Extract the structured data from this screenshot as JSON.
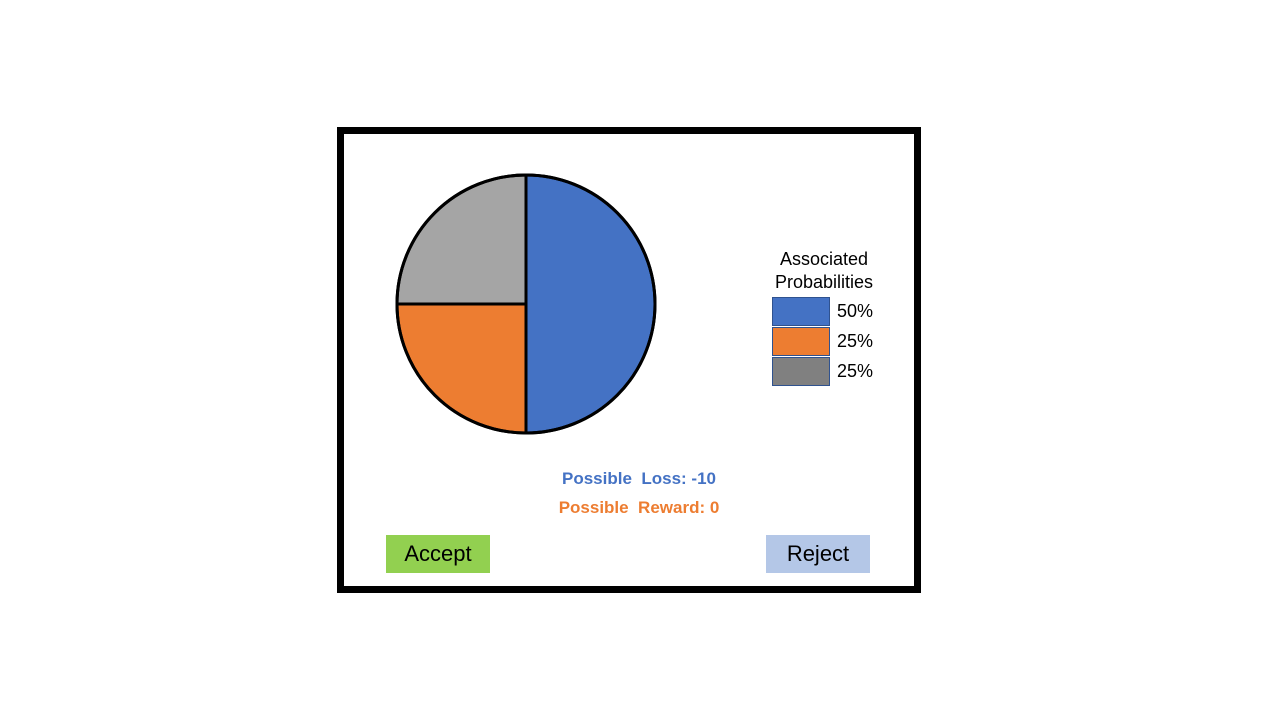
{
  "colors": {
    "blue": "#4472c4",
    "orange": "#ed7d31",
    "gray_pie": "#a5a5a5",
    "gray_legend": "#808080",
    "accept_bg": "#92d050",
    "reject_bg": "#b4c7e7"
  },
  "chart_data": {
    "type": "pie",
    "slices": [
      {
        "value": 50,
        "color": "#4472c4"
      },
      {
        "value": 25,
        "color": "#ed7d31"
      },
      {
        "value": 25,
        "color": "#a5a5a5"
      }
    ]
  },
  "legend": {
    "title_line1": "Associated",
    "title_line2": "Probabilities",
    "items": [
      {
        "label": "50%",
        "color": "#4472c4"
      },
      {
        "label": "25%",
        "color": "#ed7d31"
      },
      {
        "label": "25%",
        "color": "#808080"
      }
    ]
  },
  "outcomes": {
    "loss": "Possible  Loss: -10",
    "reward": "Possible  Reward: 0"
  },
  "buttons": {
    "accept": "Accept",
    "reject": "Reject"
  }
}
